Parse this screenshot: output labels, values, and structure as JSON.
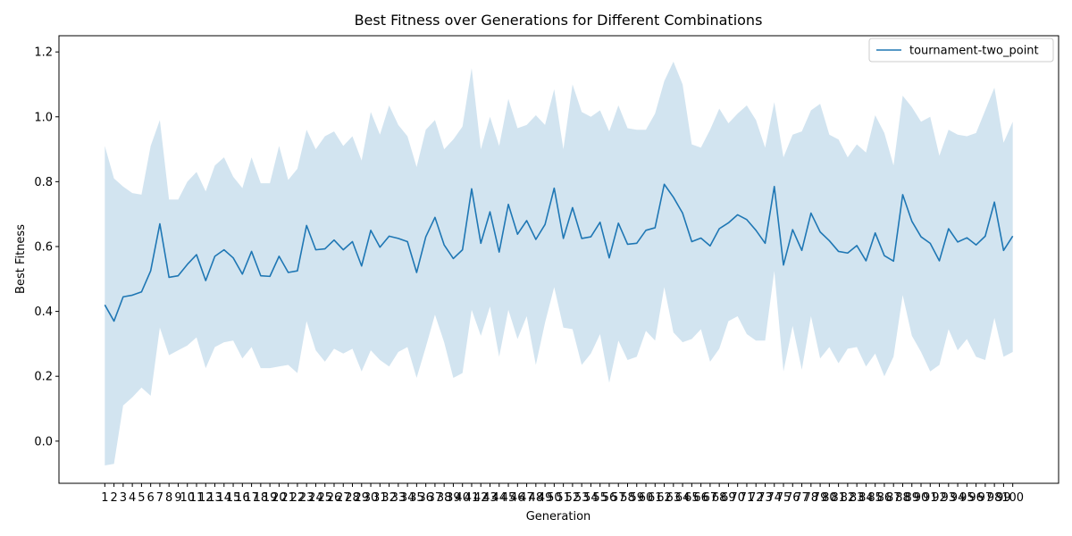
{
  "chart_data": {
    "type": "line",
    "title": "Best Fitness over Generations for Different Combinations",
    "xlabel": "Generation",
    "ylabel": "Best Fitness",
    "ylim": [
      -0.13,
      1.25
    ],
    "yticks": [
      "0.0",
      "0.2",
      "0.4",
      "0.6",
      "0.8",
      "1.0",
      "1.2"
    ],
    "ytick_values": [
      0.0,
      0.2,
      0.4,
      0.6,
      0.8,
      1.0,
      1.2
    ],
    "x": [
      1,
      2,
      3,
      4,
      5,
      6,
      7,
      8,
      9,
      10,
      11,
      12,
      13,
      14,
      15,
      16,
      17,
      18,
      19,
      20,
      21,
      22,
      23,
      24,
      25,
      26,
      27,
      28,
      29,
      30,
      31,
      32,
      33,
      34,
      35,
      36,
      37,
      38,
      39,
      40,
      41,
      42,
      43,
      44,
      45,
      46,
      47,
      48,
      49,
      50,
      51,
      52,
      53,
      54,
      55,
      56,
      57,
      58,
      59,
      60,
      61,
      62,
      63,
      64,
      65,
      66,
      67,
      68,
      69,
      70,
      71,
      72,
      73,
      74,
      75,
      76,
      77,
      78,
      79,
      80,
      81,
      82,
      83,
      84,
      85,
      86,
      87,
      88,
      89,
      90,
      91,
      92,
      93,
      94,
      95,
      96,
      97,
      98,
      99,
      100
    ],
    "legend": {
      "position": "top-right",
      "entries": [
        "tournament-two_point"
      ]
    },
    "series": [
      {
        "name": "tournament-two_point",
        "color": "#1f77b4",
        "band_color": "#1f77b4",
        "values": [
          0.42,
          0.37,
          0.445,
          0.45,
          0.46,
          0.525,
          0.67,
          0.505,
          0.51,
          0.545,
          0.575,
          0.495,
          0.57,
          0.59,
          0.565,
          0.515,
          0.585,
          0.51,
          0.508,
          0.57,
          0.52,
          0.525,
          0.665,
          0.59,
          0.593,
          0.62,
          0.59,
          0.615,
          0.54,
          0.65,
          0.598,
          0.632,
          0.625,
          0.615,
          0.52,
          0.63,
          0.69,
          0.605,
          0.563,
          0.59,
          0.778,
          0.61,
          0.707,
          0.583,
          0.73,
          0.638,
          0.68,
          0.622,
          0.668,
          0.78,
          0.625,
          0.72,
          0.625,
          0.63,
          0.675,
          0.565,
          0.672,
          0.607,
          0.61,
          0.65,
          0.658,
          0.792,
          0.752,
          0.703,
          0.615,
          0.626,
          0.602,
          0.655,
          0.673,
          0.698,
          0.683,
          0.65,
          0.61,
          0.785,
          0.543,
          0.652,
          0.588,
          0.703,
          0.645,
          0.618,
          0.585,
          0.58,
          0.603,
          0.556,
          0.642,
          0.572,
          0.555,
          0.76,
          0.678,
          0.63,
          0.61,
          0.556,
          0.655,
          0.614,
          0.627,
          0.605,
          0.632,
          0.737,
          0.588,
          0.632
        ],
        "upper": [
          0.91,
          0.81,
          0.785,
          0.765,
          0.76,
          0.91,
          0.99,
          0.745,
          0.745,
          0.8,
          0.83,
          0.77,
          0.85,
          0.875,
          0.815,
          0.78,
          0.875,
          0.795,
          0.795,
          0.91,
          0.805,
          0.84,
          0.96,
          0.9,
          0.94,
          0.955,
          0.91,
          0.94,
          0.865,
          1.015,
          0.945,
          1.035,
          0.975,
          0.94,
          0.845,
          0.96,
          0.99,
          0.9,
          0.93,
          0.97,
          1.15,
          0.9,
          1.0,
          0.91,
          1.055,
          0.965,
          0.975,
          1.005,
          0.975,
          1.085,
          0.9,
          1.1,
          1.015,
          1.0,
          1.02,
          0.955,
          1.035,
          0.965,
          0.96,
          0.96,
          1.01,
          1.11,
          1.17,
          1.1,
          0.915,
          0.905,
          0.96,
          1.025,
          0.98,
          1.01,
          1.035,
          0.99,
          0.905,
          1.045,
          0.875,
          0.945,
          0.955,
          1.02,
          1.04,
          0.945,
          0.93,
          0.875,
          0.915,
          0.89,
          1.005,
          0.95,
          0.85,
          1.065,
          1.03,
          0.985,
          1.0,
          0.88,
          0.96,
          0.945,
          0.94,
          0.95,
          1.02,
          1.09,
          0.92,
          0.985
        ],
        "lower": [
          -0.075,
          -0.07,
          0.11,
          0.135,
          0.165,
          0.14,
          0.35,
          0.265,
          0.28,
          0.295,
          0.32,
          0.225,
          0.29,
          0.305,
          0.31,
          0.255,
          0.29,
          0.225,
          0.225,
          0.23,
          0.235,
          0.21,
          0.37,
          0.28,
          0.245,
          0.285,
          0.27,
          0.285,
          0.215,
          0.28,
          0.25,
          0.23,
          0.275,
          0.29,
          0.195,
          0.29,
          0.39,
          0.305,
          0.195,
          0.21,
          0.405,
          0.325,
          0.415,
          0.26,
          0.405,
          0.315,
          0.385,
          0.235,
          0.365,
          0.475,
          0.35,
          0.345,
          0.235,
          0.27,
          0.33,
          0.18,
          0.31,
          0.25,
          0.26,
          0.34,
          0.31,
          0.475,
          0.335,
          0.305,
          0.315,
          0.345,
          0.245,
          0.285,
          0.37,
          0.385,
          0.33,
          0.31,
          0.31,
          0.525,
          0.215,
          0.355,
          0.22,
          0.385,
          0.255,
          0.29,
          0.24,
          0.285,
          0.29,
          0.23,
          0.27,
          0.2,
          0.26,
          0.45,
          0.325,
          0.275,
          0.215,
          0.235,
          0.345,
          0.28,
          0.315,
          0.26,
          0.25,
          0.38,
          0.26,
          0.275
        ]
      }
    ]
  }
}
